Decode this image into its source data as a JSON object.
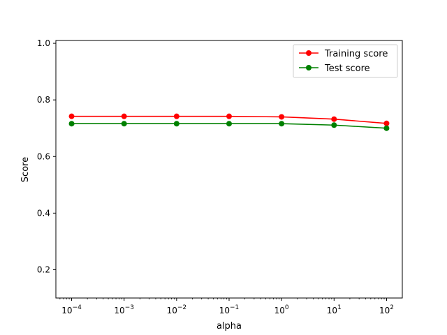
{
  "chart_data": {
    "type": "line",
    "xlabel": "alpha",
    "ylabel": "Score",
    "xscale": "log",
    "x": [
      0.0001,
      0.001,
      0.01,
      0.1,
      1,
      10,
      100
    ],
    "xticks": [
      {
        "value": 0.0001,
        "base": "10",
        "exp": "−4"
      },
      {
        "value": 0.001,
        "base": "10",
        "exp": "−3"
      },
      {
        "value": 0.01,
        "base": "10",
        "exp": "−2"
      },
      {
        "value": 0.1,
        "base": "10",
        "exp": "−1"
      },
      {
        "value": 1,
        "base": "10",
        "exp": "0"
      },
      {
        "value": 10,
        "base": "10",
        "exp": "1"
      },
      {
        "value": 100,
        "base": "10",
        "exp": "2"
      }
    ],
    "yticks": [
      "0.2",
      "0.4",
      "0.6",
      "0.8",
      "1.0"
    ],
    "ylim": [
      0.1,
      1.01
    ],
    "grid": false,
    "legend_position": "top-right",
    "series": [
      {
        "name": "Training score",
        "color": "#ff0000",
        "values": [
          0.742,
          0.742,
          0.742,
          0.742,
          0.74,
          0.732,
          0.717
        ]
      },
      {
        "name": "Test score",
        "color": "#008000",
        "values": [
          0.716,
          0.716,
          0.716,
          0.716,
          0.716,
          0.711,
          0.7
        ]
      }
    ]
  }
}
